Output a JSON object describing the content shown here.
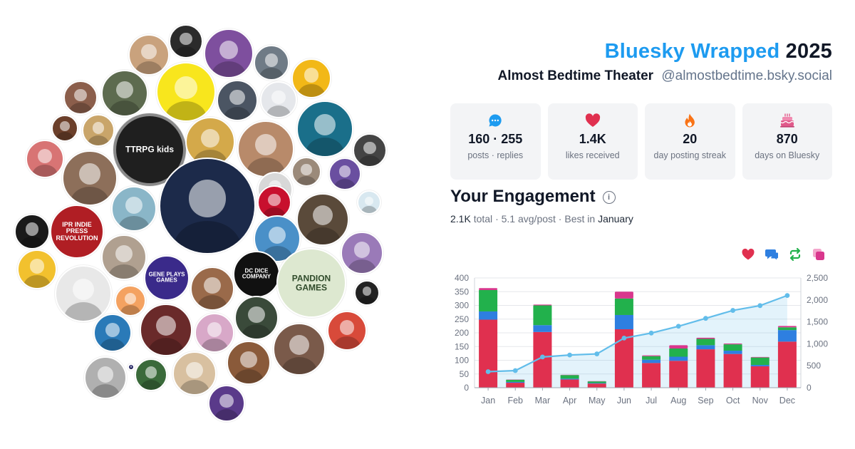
{
  "header": {
    "brand": "Bluesky Wrapped",
    "year": "2025",
    "account_name": "Almost Bedtime Theater",
    "handle": "@almostbedtime.bsky.social"
  },
  "stats": [
    {
      "icon": "speech-bubble-icon",
      "value": "160 · 255",
      "label": "posts · replies"
    },
    {
      "icon": "heart-icon",
      "value": "1.4K",
      "label": "likes received"
    },
    {
      "icon": "fire-icon",
      "value": "20",
      "label": "day posting streak"
    },
    {
      "icon": "cake-icon",
      "value": "870",
      "label": "days on Bluesky"
    }
  ],
  "engagement": {
    "title": "Your Engagement",
    "total_value": "2.1K",
    "total_word": "total",
    "sep": "·",
    "avg": "5.1 avg/post",
    "best_prefix": "Best in",
    "best_month": "January"
  },
  "legend": [
    {
      "icon": "heart-icon",
      "color": "#e0304f"
    },
    {
      "icon": "reply-icon",
      "color": "#2e7fe0"
    },
    {
      "icon": "repost-icon",
      "color": "#22b14c"
    },
    {
      "icon": "quote-icon",
      "color": "#d9378d"
    }
  ],
  "avatars": [
    {
      "label": "",
      "color": "#c9a27d"
    },
    {
      "label": "",
      "color": "#2b2b2b"
    },
    {
      "label": "",
      "color": "#7e4f9e"
    },
    {
      "label": "",
      "color": "#6f7b86"
    },
    {
      "label": "",
      "color": "#f2b817"
    },
    {
      "label": "",
      "color": "#8b5e4b"
    },
    {
      "label": "",
      "color": "#5d6b4f"
    },
    {
      "label": "",
      "color": "#f8e61d"
    },
    {
      "label": "",
      "color": "#4b5563"
    },
    {
      "label": "",
      "color": "#e5e7eb"
    },
    {
      "label": "",
      "color": "#6b3f2a"
    },
    {
      "label": "",
      "color": "#c9a56a"
    },
    {
      "label": "TTRPG kids",
      "color": "#1f1f1f"
    },
    {
      "label": "",
      "color": "#d4a94a"
    },
    {
      "label": "",
      "color": "#b88a6a"
    },
    {
      "label": "",
      "color": "#1a6f8a"
    },
    {
      "label": "",
      "color": "#444444"
    },
    {
      "label": "",
      "color": "#d87474"
    },
    {
      "label": "",
      "color": "#8d6f5a"
    },
    {
      "label": "",
      "color": "#1c2a4a"
    },
    {
      "label": "",
      "color": "#d8d8d8"
    },
    {
      "label": "",
      "color": "#9b8a7a"
    },
    {
      "label": "",
      "color": "#6a4fa0"
    },
    {
      "label": "",
      "color": "#d8e8f0"
    },
    {
      "label": "IPR INDIE PRESS REVOLUTION",
      "color": "#b01e24"
    },
    {
      "label": "",
      "color": "#8ab6c8"
    },
    {
      "label": "",
      "color": "#c8102e"
    },
    {
      "label": "",
      "color": "#5a4a3a"
    },
    {
      "label": "",
      "color": "#1a1a1a"
    },
    {
      "label": "",
      "color": "#f2c12e"
    },
    {
      "label": "",
      "color": "#4a90c8"
    },
    {
      "label": "",
      "color": "#9a7ab8"
    },
    {
      "label": "",
      "color": "#b0a090"
    },
    {
      "label": "",
      "color": "#e8e8e8"
    },
    {
      "label": "GENE PLAYS GAMES",
      "color": "#3a2a8a"
    },
    {
      "label": "",
      "color": "#9a6a4a"
    },
    {
      "label": "DC DICE COMPANY",
      "color": "#111111"
    },
    {
      "label": "PANDION GAMES",
      "color": "#dde8d0"
    },
    {
      "label": "",
      "color": "#f4a261"
    },
    {
      "label": "",
      "color": "#222222"
    },
    {
      "label": "",
      "color": "#6a2a2a"
    },
    {
      "label": "",
      "color": "#d8a8c8"
    },
    {
      "label": "",
      "color": "#3a4a3a"
    },
    {
      "label": "",
      "color": "#d84a3a"
    },
    {
      "label": "",
      "color": "#2a7ab8"
    },
    {
      "label": "",
      "color": "#7a5a4a"
    },
    {
      "label": "",
      "color": "#8a5a3a"
    },
    {
      "label": "",
      "color": "#b0b0b0"
    },
    {
      "label": "",
      "color": "#3a6a3a"
    },
    {
      "label": "",
      "color": "#d8c0a0"
    },
    {
      "label": "",
      "color": "#5a3a8a"
    },
    {
      "label": "",
      "color": "#2a2a6a"
    }
  ],
  "chart_data": {
    "type": "bar",
    "categories": [
      "Jan",
      "Feb",
      "Mar",
      "Apr",
      "May",
      "Jun",
      "Jul",
      "Aug",
      "Sep",
      "Oct",
      "Nov",
      "Dec"
    ],
    "series": [
      {
        "color": "#e0304f",
        "values": [
          248,
          18,
          203,
          30,
          15,
          213,
          90,
          98,
          140,
          123,
          78,
          168
        ]
      },
      {
        "color": "#2e7fe0",
        "values": [
          30,
          3,
          25,
          3,
          2,
          52,
          12,
          15,
          15,
          12,
          5,
          42
        ]
      },
      {
        "color": "#22b14c",
        "values": [
          78,
          8,
          72,
          13,
          6,
          60,
          13,
          30,
          23,
          23,
          27,
          10
        ]
      },
      {
        "color": "#d9378d",
        "values": [
          7,
          1,
          3,
          1,
          1,
          25,
          3,
          12,
          4,
          3,
          2,
          5
        ]
      }
    ],
    "cumulative": {
      "color": "#62bdea",
      "values": [
        365,
        390,
        700,
        745,
        770,
        1130,
        1245,
        1400,
        1580,
        1760,
        1870,
        2100
      ]
    },
    "ylim": [
      0,
      400
    ],
    "yticks": [
      0,
      50,
      100,
      150,
      200,
      250,
      300,
      350,
      400
    ],
    "y2lim": [
      0,
      2500
    ],
    "y2ticks": [
      0,
      500,
      1000,
      1500,
      2000,
      2500
    ],
    "y2tick_labels": [
      "0",
      "500",
      "1,000",
      "1,500",
      "2,000",
      "2,500"
    ],
    "grid": true
  }
}
